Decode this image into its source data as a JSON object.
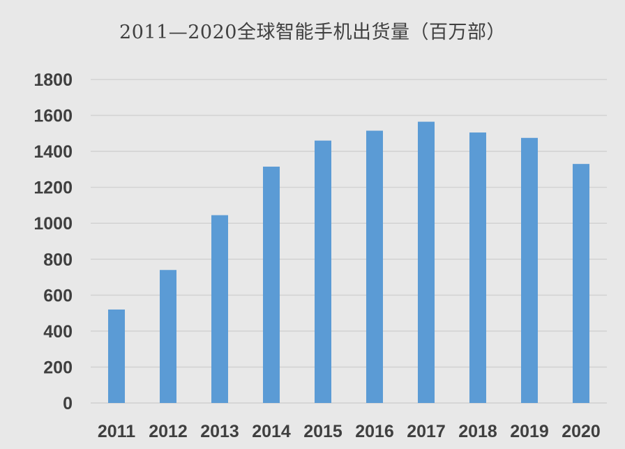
{
  "chart_data": {
    "type": "bar",
    "title": "2011—2020全球智能手机出货量（百万部）",
    "xlabel": "",
    "ylabel": "",
    "categories": [
      "2011",
      "2012",
      "2013",
      "2014",
      "2015",
      "2016",
      "2017",
      "2018",
      "2019",
      "2020"
    ],
    "values": [
      520,
      740,
      1045,
      1315,
      1460,
      1515,
      1565,
      1505,
      1475,
      1330
    ],
    "ylim": [
      0,
      1800
    ],
    "yticks": [
      "0",
      "200",
      "400",
      "600",
      "800",
      "1000",
      "1200",
      "1400",
      "1600",
      "1800"
    ],
    "grid": true,
    "legend": "none",
    "colors": {
      "bar": "#5b9bd5",
      "background": "#e8e8e8",
      "grid": "#d2d2d2",
      "text": "#3f3f3f"
    }
  }
}
